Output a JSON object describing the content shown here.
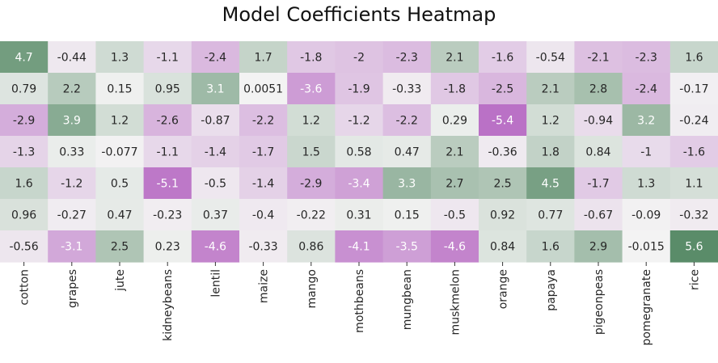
{
  "chart_data": {
    "type": "heatmap",
    "title": "Model Coefficients Heatmap",
    "xlabel": "",
    "ylabel": "",
    "categories": [
      "cotton",
      "grapes",
      "jute",
      "kidneybeans",
      "lentil",
      "maize",
      "mango",
      "mothbeans",
      "mungbean",
      "muskmelon",
      "orange",
      "papaya",
      "pigeonpeas",
      "pomegranate",
      "rice"
    ],
    "values": [
      [
        "4.7",
        "-0.44",
        "1.3",
        "-1.1",
        "-2.4",
        "1.7",
        "-1.8",
        "-2",
        "-2.3",
        "2.1",
        "-1.6",
        "-0.54",
        "-2.1",
        "-2.3",
        "1.6"
      ],
      [
        "0.79",
        "2.2",
        "0.15",
        "0.95",
        "3.1",
        "0.0051",
        "-3.6",
        "-1.9",
        "-0.33",
        "-1.8",
        "-2.5",
        "2.1",
        "2.8",
        "-2.4",
        "-0.17"
      ],
      [
        "-2.9",
        "3.9",
        "1.2",
        "-2.6",
        "-0.87",
        "-2.2",
        "1.2",
        "-1.2",
        "-2.2",
        "0.29",
        "-5.4",
        "1.2",
        "-0.94",
        "3.2",
        "-0.24"
      ],
      [
        "-1.3",
        "0.33",
        "-0.077",
        "-1.1",
        "-1.4",
        "-1.7",
        "1.5",
        "0.58",
        "0.47",
        "2.1",
        "-0.36",
        "1.8",
        "0.84",
        "-1",
        "-1.6"
      ],
      [
        "1.6",
        "-1.2",
        "0.5",
        "-5.1",
        "-0.5",
        "-1.4",
        "-2.9",
        "-3.4",
        "3.3",
        "2.7",
        "2.5",
        "4.5",
        "-1.7",
        "1.3",
        "1.1"
      ],
      [
        "0.96",
        "-0.27",
        "0.47",
        "-0.23",
        "0.37",
        "-0.4",
        "-0.22",
        "0.31",
        "0.15",
        "-0.5",
        "0.92",
        "0.77",
        "-0.67",
        "-0.09",
        "-0.32"
      ],
      [
        "-0.56",
        "-3.1",
        "2.5",
        "0.23",
        "-4.6",
        "-0.33",
        "0.86",
        "-4.1",
        "-3.5",
        "-4.6",
        "0.84",
        "1.6",
        "2.9",
        "-0.015",
        "5.6"
      ]
    ],
    "colormap": {
      "negative": "#b86cc4",
      "center": "#f3f3f3",
      "positive": "#5a8c69"
    },
    "value_range": [
      -5.6,
      5.6
    ],
    "grid": false,
    "legend": "none"
  }
}
